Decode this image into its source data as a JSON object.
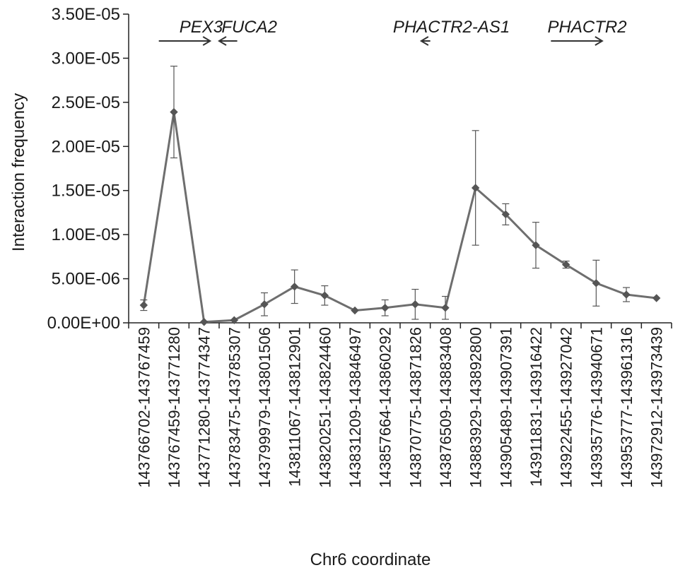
{
  "chart_data": {
    "type": "line",
    "title": "",
    "xlabel": "Chr6 coordinate",
    "ylabel": "Interaction frequency",
    "ylim": [
      0,
      3.5e-05
    ],
    "yticks": [
      {
        "value": 0,
        "label": "0.00E+00"
      },
      {
        "value": 5e-06,
        "label": "5.00E-06"
      },
      {
        "value": 1e-05,
        "label": "1.00E-05"
      },
      {
        "value": 1.5e-05,
        "label": "1.50E-05"
      },
      {
        "value": 2e-05,
        "label": "2.00E-05"
      },
      {
        "value": 2.5e-05,
        "label": "2.50E-05"
      },
      {
        "value": 3e-05,
        "label": "3.00E-05"
      },
      {
        "value": 3.5e-05,
        "label": "3.50E-05"
      }
    ],
    "categories": [
      "143766702-143767459",
      "143767459-143771280",
      "143771280-143774347",
      "143783475-143785307",
      "143799979-143801506",
      "143811067-143812901",
      "143820251-143824460",
      "143831209-143846497",
      "143857664-143860292",
      "143870775-143871826",
      "143876509-143883408",
      "143883929-143892800",
      "143905489-143907391",
      "143911831-143916422",
      "143922455-143927042",
      "143935776-143940671",
      "143953777-143961316",
      "143972912-143973439"
    ],
    "series": [
      {
        "values": [
          2e-06,
          2.39e-05,
          1e-07,
          3e-07,
          2.1e-06,
          4.1e-06,
          3.1e-06,
          1.4e-06,
          1.7e-06,
          2.1e-06,
          1.7e-06,
          1.53e-05,
          1.23e-05,
          8.8e-06,
          6.6e-06,
          4.5e-06,
          3.2e-06,
          2.8e-06
        ],
        "errors": [
          6e-07,
          5.2e-06,
          0,
          0,
          1.3e-06,
          1.9e-06,
          1.1e-06,
          0,
          9e-07,
          1.7e-06,
          1.3e-06,
          6.5e-06,
          1.2e-06,
          2.6e-06,
          4e-07,
          2.6e-06,
          8e-07,
          0
        ]
      }
    ],
    "grid": false,
    "legend": "none",
    "colors": {
      "line": "#6e6e6e",
      "marker": "#555555",
      "error": "#555555",
      "axis": "#222222",
      "text": "#1a1a1a"
    },
    "annotations": [
      {
        "label": "PEX3",
        "direction": "right",
        "from_index": 0.5,
        "to_index": 2.2,
        "label_index": 1.9
      },
      {
        "label": "FUCA2",
        "direction": "left",
        "from_index": 3.1,
        "to_index": 2.5,
        "label_index": 3.5
      },
      {
        "label": "PHACTR2-AS1",
        "direction": "left",
        "from_index": 9.5,
        "to_index": 9.2,
        "label_index": 10.2
      },
      {
        "label": "PHACTR2",
        "direction": "right",
        "from_index": 13.5,
        "to_index": 15.2,
        "label_index": 14.7
      }
    ]
  }
}
